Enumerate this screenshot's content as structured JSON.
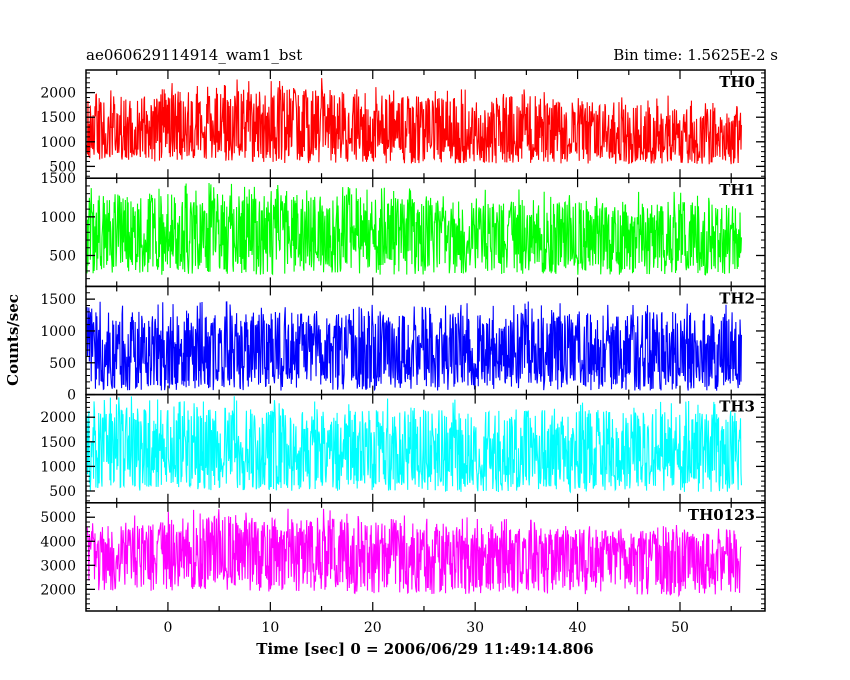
{
  "header": {
    "file_name": "ae060629114914_wam1_bst",
    "bin_time": "Bin time: 1.5625E-2 s"
  },
  "chart_data": {
    "type": "line",
    "title": "ae060629114914_wam1_bst",
    "subtitle": "Bin time: 1.5625E-2 s",
    "xlabel": "Time [sec] 0 = 2006/06/29 11:49:14.806",
    "ylabel": "Counts/sec",
    "xlim": [
      -8.0,
      58.3
    ],
    "x_data_range": [
      -7.9,
      56.0
    ],
    "x_ticks": [
      "0",
      "10",
      "20",
      "30",
      "40",
      "50"
    ],
    "grid": false,
    "legend": "none",
    "panels": [
      {
        "name": "TH0",
        "color": "#ff0000",
        "ylim": [
          260,
          2460
        ],
        "y_ticks": [
          "500",
          "1000",
          "1500",
          "2000"
        ],
        "y_tick_values": [
          500,
          1000,
          1500,
          2000
        ],
        "envelope": {
          "x": [
            -7.9,
            0,
            5,
            10,
            15,
            20,
            25,
            30,
            35,
            40,
            45,
            50,
            56
          ],
          "upper": [
            1900,
            2000,
            2150,
            2100,
            2100,
            1950,
            1900,
            1900,
            1950,
            1850,
            1800,
            1750,
            1600
          ],
          "lower": [
            600,
            580,
            600,
            560,
            560,
            560,
            560,
            560,
            560,
            560,
            550,
            540,
            520
          ],
          "center": [
            1150,
            1200,
            1250,
            1250,
            1250,
            1200,
            1150,
            1150,
            1150,
            1100,
            1050,
            1000,
            950
          ]
        }
      },
      {
        "name": "TH1",
        "color": "#00ff00",
        "ylim": [
          100,
          1500
        ],
        "y_ticks": [
          "500",
          "1000",
          "1500"
        ],
        "y_tick_values": [
          500,
          1000,
          1500
        ],
        "envelope": {
          "x": [
            -7.9,
            0,
            10,
            20,
            30,
            40,
            50,
            56
          ],
          "upper": [
            1300,
            1300,
            1300,
            1250,
            1250,
            1200,
            1200,
            1150
          ],
          "lower": [
            250,
            250,
            250,
            250,
            250,
            250,
            250,
            250
          ],
          "center": [
            730,
            740,
            740,
            730,
            720,
            710,
            700,
            690
          ]
        }
      },
      {
        "name": "TH2",
        "color": "#0000ff",
        "ylim": [
          0,
          1700
        ],
        "y_ticks": [
          "0",
          "500",
          "1000",
          "1500"
        ],
        "y_tick_values": [
          0,
          500,
          1000,
          1500
        ],
        "envelope": {
          "x": [
            -7.9,
            0,
            10,
            20,
            30,
            40,
            50,
            56
          ],
          "upper": [
            1300,
            1300,
            1300,
            1250,
            1300,
            1300,
            1300,
            1250
          ],
          "lower": [
            70,
            60,
            60,
            60,
            60,
            60,
            60,
            60
          ],
          "center": [
            620,
            620,
            620,
            610,
            600,
            600,
            600,
            590
          ]
        }
      },
      {
        "name": "TH3",
        "color": "#00ffff",
        "ylim": [
          260,
          2460
        ],
        "y_ticks": [
          "500",
          "1000",
          "1500",
          "2000"
        ],
        "y_tick_values": [
          500,
          1000,
          1500,
          2000
        ],
        "envelope": {
          "x": [
            -7.9,
            0,
            10,
            20,
            30,
            40,
            50,
            56
          ],
          "upper": [
            2200,
            2200,
            2200,
            2150,
            2150,
            2150,
            2100,
            2100
          ],
          "lower": [
            500,
            500,
            500,
            480,
            480,
            480,
            480,
            480
          ],
          "center": [
            1200,
            1200,
            1200,
            1180,
            1160,
            1160,
            1150,
            1150
          ]
        }
      },
      {
        "name": "TH0123",
        "color": "#ff00ff",
        "ylim": [
          1100,
          5600
        ],
        "y_ticks": [
          "2000",
          "3000",
          "4000",
          "5000"
        ],
        "y_tick_values": [
          2000,
          3000,
          4000,
          5000
        ],
        "envelope": {
          "x": [
            -7.9,
            0,
            5,
            10,
            15,
            20,
            30,
            40,
            50,
            56
          ],
          "upper": [
            4700,
            4900,
            5100,
            5000,
            5000,
            4800,
            4700,
            4500,
            4400,
            4300
          ],
          "lower": [
            1900,
            1900,
            2000,
            1900,
            1900,
            1800,
            1800,
            1800,
            1700,
            1700
          ],
          "center": [
            3500,
            3550,
            3600,
            3600,
            3550,
            3500,
            3400,
            3350,
            3300,
            3250
          ]
        }
      }
    ]
  }
}
